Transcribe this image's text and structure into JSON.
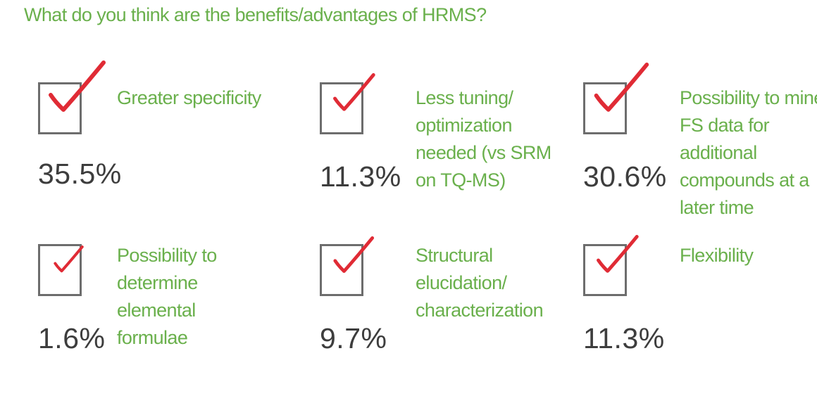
{
  "title": "What do you think are the benefits/advantages of HRMS?",
  "colors": {
    "title": "#6ab04c",
    "label": "#6ab04c",
    "check": "#e02b35",
    "box": "#6d6d6d",
    "percent": "#3d3d3d"
  },
  "chart_data": {
    "type": "table",
    "title": "What do you think are the benefits/advantages of HRMS?",
    "items": [
      {
        "label_lines": [
          "Greater specificity"
        ],
        "percent": "35.5%",
        "value": 35.5
      },
      {
        "label_lines": [
          "Less tuning/",
          "optimization",
          "needed (vs SRM",
          "on TQ-MS)"
        ],
        "percent": "11.3%",
        "value": 11.3
      },
      {
        "label_lines": [
          "Possibility to mine",
          "FS data for",
          "additional",
          "compounds at a",
          "later time"
        ],
        "percent": "30.6%",
        "value": 30.6
      },
      {
        "label_lines": [
          "Possibility to",
          "determine elemental",
          "formulae"
        ],
        "percent": "1.6%",
        "value": 1.6
      },
      {
        "label_lines": [
          "Structural",
          "elucidation/",
          "characterization"
        ],
        "percent": "9.7%",
        "value": 9.7
      },
      {
        "label_lines": [
          "Flexibility"
        ],
        "percent": "11.3%",
        "value": 11.3
      }
    ]
  }
}
